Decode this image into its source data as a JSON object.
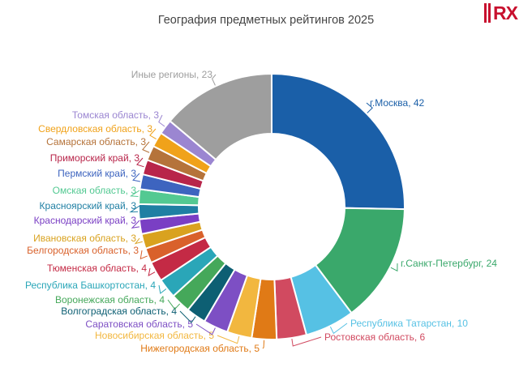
{
  "header": {
    "logo_text": "RX"
  },
  "chart_data": {
    "type": "pie",
    "title": "География предметных рейтингов 2025",
    "slices": [
      {
        "label": "г.Москва",
        "value": 42,
        "color": "#1a5fa8",
        "text": "г.Москва, 42"
      },
      {
        "label": "г.Санкт-Петербург",
        "value": 24,
        "color": "#3aa86b",
        "text": "г.Санкт-Петербург, 24"
      },
      {
        "label": "Республика Татарстан",
        "value": 10,
        "color": "#56c1e4",
        "text": "Республика Татарстан, 10"
      },
      {
        "label": "Ростовская область",
        "value": 6,
        "color": "#d14a60",
        "text": "Ростовская область, 6"
      },
      {
        "label": "Нижегородская область",
        "value": 5,
        "color": "#e07a16",
        "text": "Нижегородская область, 5"
      },
      {
        "label": "Новосибирская область",
        "value": 5,
        "color": "#f2b73f",
        "text": "Новосибирская область, 5"
      },
      {
        "label": "Саратовская область",
        "value": 5,
        "color": "#7d4fc4",
        "text": "Саратовская область, 5"
      },
      {
        "label": "Волгоградская область",
        "value": 4,
        "color": "#0d5f73",
        "text": "Волгоградская область, 4"
      },
      {
        "label": "Воронежская область",
        "value": 4,
        "color": "#45a85a",
        "text": "Воронежская область, 4"
      },
      {
        "label": "Республика Башкортостан",
        "value": 4,
        "color": "#2aa6b8",
        "text": "Республика Башкортостан, 4"
      },
      {
        "label": "Тюменская область",
        "value": 4,
        "color": "#c42a45",
        "text": "Тюменская область, 4"
      },
      {
        "label": "Белгородская область",
        "value": 3,
        "color": "#d9612b",
        "text": "Белгородская область, 3"
      },
      {
        "label": "Ивановская область",
        "value": 3,
        "color": "#d9a21f",
        "text": "Ивановская область, 3"
      },
      {
        "label": "Краснодарский край",
        "value": 3,
        "color": "#7a3fc4",
        "text": "Краснодарский край, 3"
      },
      {
        "label": "Красноярский край",
        "value": 3,
        "color": "#1f7fa3",
        "text": "Красноярский край, 3"
      },
      {
        "label": "Омская область",
        "value": 3,
        "color": "#53c992",
        "text": "Омская область, 3"
      },
      {
        "label": "Пермский край",
        "value": 3,
        "color": "#3d64bf",
        "text": "Пермский край, 3"
      },
      {
        "label": "Приморский край",
        "value": 3,
        "color": "#b8254a",
        "text": "Приморский край, 3"
      },
      {
        "label": "Самарская область",
        "value": 3,
        "color": "#b5733a",
        "text": "Самарская область, 3"
      },
      {
        "label": "Свердловская область",
        "value": 3,
        "color": "#f0a21a",
        "text": "Свердловская область, 3"
      },
      {
        "label": "Томская область",
        "value": 3,
        "color": "#9b86d1",
        "text": "Томская область, 3"
      },
      {
        "label": "Иные регионы",
        "value": 23,
        "color": "#9e9e9e",
        "text": "Иные регионы, 23"
      }
    ]
  }
}
